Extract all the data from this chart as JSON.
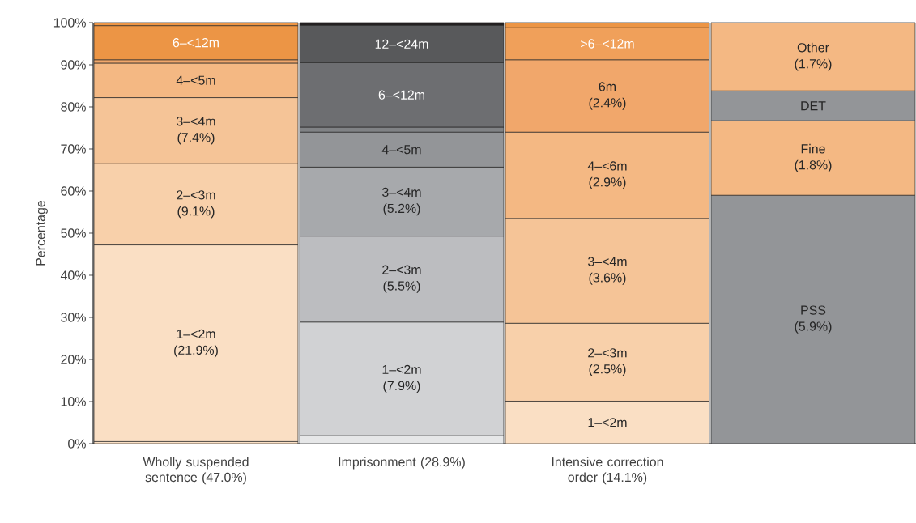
{
  "chart_data": {
    "type": "bar",
    "stacked": true,
    "ylabel": "Percentage",
    "categories": [
      "Wholly suspended sentence (47.0%)",
      "Imprisonment (28.9%)",
      "Intensive correction order (14.1%)",
      null
    ],
    "ylim": [
      0,
      100
    ],
    "yticks": [
      {
        "value": 0,
        "label": "0%"
      },
      {
        "value": 10,
        "label": "10%"
      },
      {
        "value": 20,
        "label": "20%"
      },
      {
        "value": 30,
        "label": "30%"
      },
      {
        "value": 40,
        "label": "40%"
      },
      {
        "value": 50,
        "label": "50%"
      },
      {
        "value": 60,
        "label": "60%"
      },
      {
        "value": 70,
        "label": "70%"
      },
      {
        "value": 80,
        "label": "80%"
      },
      {
        "value": 90,
        "label": "90%"
      },
      {
        "value": 100,
        "label": "100%"
      }
    ],
    "series": [
      {
        "color": "#fadfc4",
        "values": [
          0.5,
          null,
          null,
          null
        ]
      },
      {
        "name": "1–<2m (21.9%)",
        "color": "#fadfc4",
        "values": [
          46.7,
          null,
          null,
          null
        ]
      },
      {
        "name": "2–<3m (9.1%)",
        "color": "#f8d0aa",
        "values": [
          19.3,
          null,
          null,
          null
        ]
      },
      {
        "name": "3–<4m (7.4%)",
        "color": "#f5c497",
        "values": [
          15.7,
          null,
          null,
          null
        ]
      },
      {
        "name": "4–<5m",
        "color": "#f4b883",
        "values": [
          8.2,
          null,
          null,
          null
        ]
      },
      {
        "color": "#f1a76b",
        "values": [
          0.8,
          null,
          null,
          null
        ]
      },
      {
        "name": "6–<12m",
        "color": "#ec9545",
        "values": [
          8.1,
          null,
          null,
          null
        ]
      },
      {
        "color": "#ec9545",
        "values": [
          0.7,
          null,
          null,
          null
        ]
      },
      {
        "color": "#e6e7e8",
        "values": [
          null,
          1.9,
          null,
          null
        ]
      },
      {
        "name": "1–<2m (7.9%)",
        "color": "#d1d2d4",
        "values": [
          null,
          27.0,
          null,
          null
        ]
      },
      {
        "name": "2–<3m (5.5%)",
        "color": "#bcbdc0",
        "values": [
          null,
          20.4,
          null,
          null
        ]
      },
      {
        "name": "3–<4m (5.2%)",
        "color": "#a7a9ac",
        "values": [
          null,
          16.4,
          null,
          null
        ]
      },
      {
        "name": "4–<5m",
        "color": "#939598",
        "values": [
          null,
          8.3,
          null,
          null
        ]
      },
      {
        "color": "#808285",
        "values": [
          null,
          1.2,
          null,
          null
        ]
      },
      {
        "name": "6–<12m",
        "color": "#6d6e71",
        "values": [
          null,
          15.3,
          null,
          null
        ]
      },
      {
        "name": "12–<24m",
        "color": "#58595b",
        "values": [
          null,
          8.9,
          null,
          null
        ]
      },
      {
        "color": "#231f20",
        "values": [
          null,
          0.6,
          null,
          null
        ]
      },
      {
        "name": "1–<2m",
        "color": "#fadfc4",
        "values": [
          null,
          null,
          10.1,
          null
        ]
      },
      {
        "name": "2–<3m (2.5%)",
        "color": "#f8d0aa",
        "values": [
          null,
          null,
          18.5,
          null
        ]
      },
      {
        "name": "3–<4m (3.6%)",
        "color": "#f5c497",
        "values": [
          null,
          null,
          24.9,
          null
        ]
      },
      {
        "name": "4–<6m (2.9%)",
        "color": "#f4b883",
        "values": [
          null,
          null,
          20.5,
          null
        ]
      },
      {
        "name": "6m (2.4%)",
        "color": "#f1a76b",
        "values": [
          null,
          null,
          17.2,
          null
        ]
      },
      {
        "name": ">6–<12m",
        "color": "#f0a05a",
        "values": [
          null,
          null,
          7.6,
          null
        ]
      },
      {
        "color": "#ec9545",
        "values": [
          null,
          null,
          1.2,
          null
        ]
      },
      {
        "name": "PSS (5.9%)",
        "color": "#939598",
        "values": [
          null,
          null,
          null,
          59.0
        ]
      },
      {
        "name": "Fine (1.8%)",
        "color": "#f4b883",
        "values": [
          null,
          null,
          null,
          17.7
        ]
      },
      {
        "name": "DET",
        "color": "#939598",
        "values": [
          null,
          null,
          null,
          7.1
        ]
      },
      {
        "name": "Other (1.7%)",
        "color": "#f4b883",
        "values": [
          null,
          null,
          null,
          16.2
        ]
      }
    ]
  }
}
